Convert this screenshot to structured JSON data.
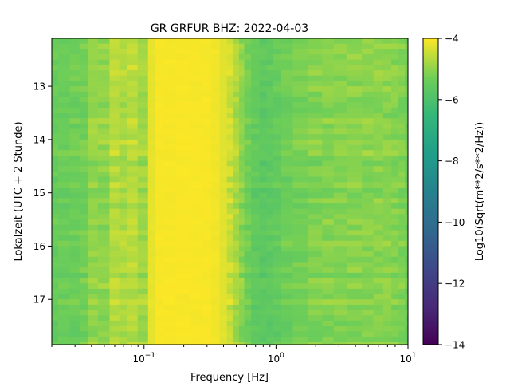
{
  "chart_data": {
    "type": "heatmap",
    "title": "GR GRFUR  BHZ: 2022-04-03",
    "xlabel": "Frequency [Hz]",
    "ylabel": "Lokalzeit (UTC + 2 Stunde)",
    "colorbar_label": "Log10(Sqrt(m**2/s**2/Hz))",
    "x_scale": "log",
    "xlim": [
      0.02,
      10
    ],
    "ylim": [
      12.1,
      17.85
    ],
    "y_inverted": true,
    "x_ticks": [
      {
        "value": 0.1,
        "base": "10",
        "exp": "−1"
      },
      {
        "value": 1,
        "base": "10",
        "exp": "0"
      },
      {
        "value": 10,
        "base": "10",
        "exp": "1"
      }
    ],
    "y_ticks": [
      13,
      14,
      15,
      16,
      17
    ],
    "colorbar": {
      "colormap": "viridis",
      "range": [
        -14,
        -4
      ],
      "ticks": [
        "−4",
        "−6",
        "−8",
        "−10",
        "−12",
        "−14"
      ],
      "tick_values": [
        -4,
        -6,
        -8,
        -10,
        -12,
        -14
      ]
    },
    "rows": 58,
    "row_start": 12.1,
    "row_step": 0.1,
    "frequencies": [
      0.02,
      0.025,
      0.03,
      0.035,
      0.04,
      0.05,
      0.06,
      0.07,
      0.08,
      0.1,
      0.115,
      0.13,
      0.15,
      0.2,
      0.25,
      0.3,
      0.35,
      0.4,
      0.45,
      0.5,
      0.55,
      0.6,
      0.7,
      0.8,
      0.9,
      1.0,
      1.2,
      1.5,
      2.0,
      2.5,
      3.0,
      4.0,
      5.0,
      6.0,
      7.0,
      8.0,
      9.0,
      10.0
    ],
    "band_levels": [
      -5.4,
      -5.35,
      -5.3,
      -5.25,
      -4.9,
      -4.95,
      -4.6,
      -4.7,
      -4.6,
      -4.8,
      -4.2,
      -4.05,
      -4.05,
      -4.05,
      -4.05,
      -4.05,
      -4.1,
      -4.25,
      -4.45,
      -4.7,
      -5.0,
      -5.3,
      -5.5,
      -5.6,
      -5.55,
      -5.45,
      -5.3,
      -5.2,
      -5.1,
      -5.05,
      -5.05,
      -5.0,
      -5.0,
      -5.0,
      -5.0,
      -5.05,
      -5.1,
      -5.3
    ]
  }
}
